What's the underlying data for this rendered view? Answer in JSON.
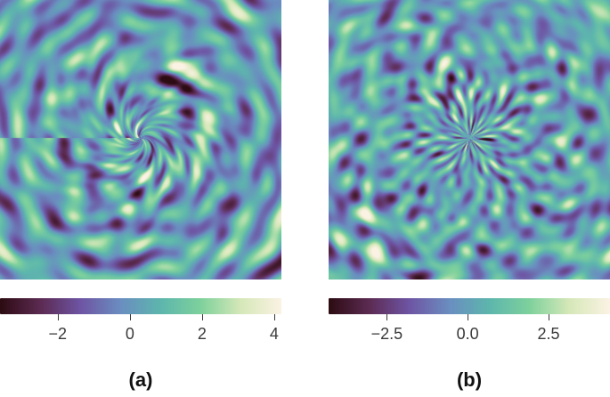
{
  "panels": [
    {
      "id": "a",
      "caption": "(a)",
      "pattern": "swirl",
      "colorbar": {
        "min": -3.6,
        "max": 4.2,
        "ticks": [
          {
            "value": -2,
            "label": "−2"
          },
          {
            "value": 0,
            "label": "0"
          },
          {
            "value": 2,
            "label": "2"
          },
          {
            "value": 4,
            "label": "4"
          }
        ]
      }
    },
    {
      "id": "b",
      "caption": "(b)",
      "pattern": "radial",
      "colorbar": {
        "min": -4.3,
        "max": 4.4,
        "ticks": [
          {
            "value": -2.5,
            "label": "−2.5"
          },
          {
            "value": 0,
            "label": "0.0"
          },
          {
            "value": 2.5,
            "label": "2.5"
          }
        ]
      }
    }
  ],
  "colormap": {
    "name": "twilight-like",
    "stops": [
      "#2d0c13",
      "#5c2b52",
      "#6e55a4",
      "#6a8ec0",
      "#5db6ad",
      "#7ed19c",
      "#d6e8b9",
      "#fbf2e4"
    ]
  }
}
